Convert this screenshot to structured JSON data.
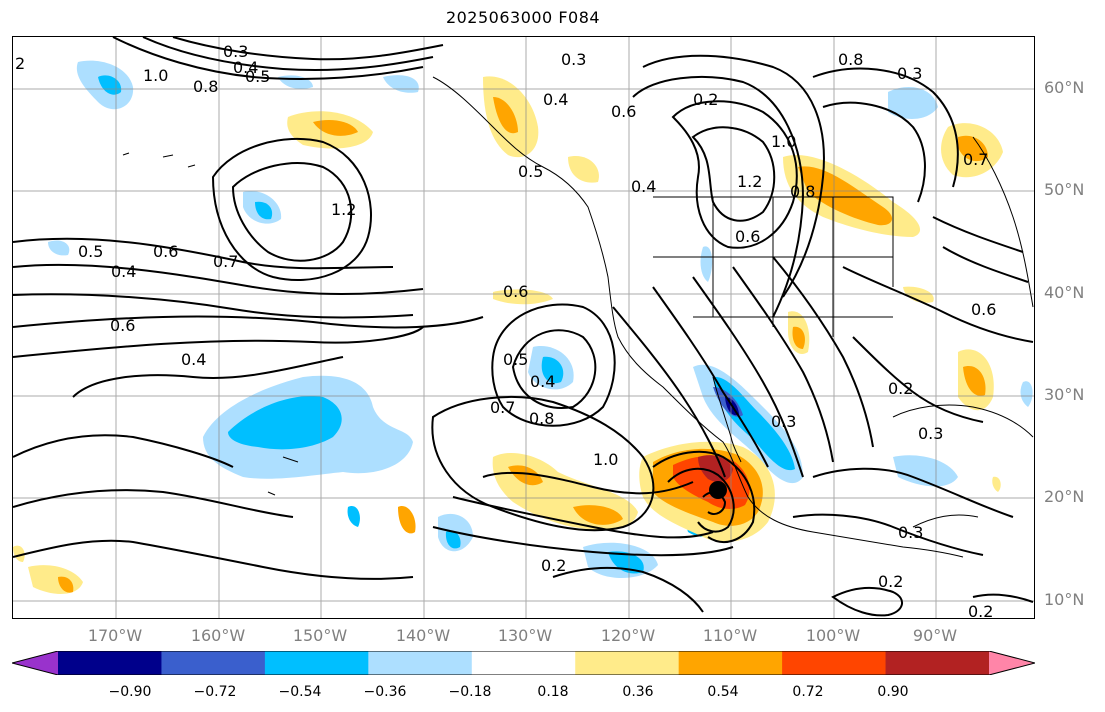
{
  "title": "2025063000 F084",
  "lat_labels": [
    "60°N",
    "50°N",
    "40°N",
    "30°N",
    "20°N",
    "10°N"
  ],
  "lon_labels": [
    "170°W",
    "160°W",
    "150°W",
    "140°W",
    "130°W",
    "120°W",
    "110°W",
    "100°W",
    "90°W"
  ],
  "contour_labels": [
    "2",
    "0.3",
    "0.4",
    "0.5",
    "1.0",
    "0.8",
    "0.3",
    "0.4",
    "0.6",
    "0.2",
    "1.0",
    "1.2",
    "0.8",
    "0.5",
    "0.3",
    "1.2",
    "0.5",
    "0.6",
    "0.7",
    "0.4",
    "0.6",
    "0.6",
    "0.4",
    "0.5",
    "0.4",
    "0.7",
    "0.8",
    "1.0",
    "0.6",
    "0.4",
    "0.3",
    "0.2",
    "0.3",
    "0.2",
    "0.3",
    "0.2",
    "0.2",
    "0.8",
    "0.7",
    "0.6"
  ],
  "colorbar": {
    "ticks": [
      "−0.90",
      "−0.72",
      "−0.54",
      "−0.36",
      "−0.18",
      "0.18",
      "0.36",
      "0.54",
      "0.72",
      "0.90"
    ],
    "colors": [
      "#9932CC",
      "#00008B",
      "#3A5FCD",
      "#00BFFF",
      "#ADDFFF",
      "#FFFFFF",
      "#FFEB8A",
      "#FFA500",
      "#FF4500",
      "#B22222",
      "#FF85A8"
    ]
  },
  "storm_marker": "tropical-cyclone-center"
}
